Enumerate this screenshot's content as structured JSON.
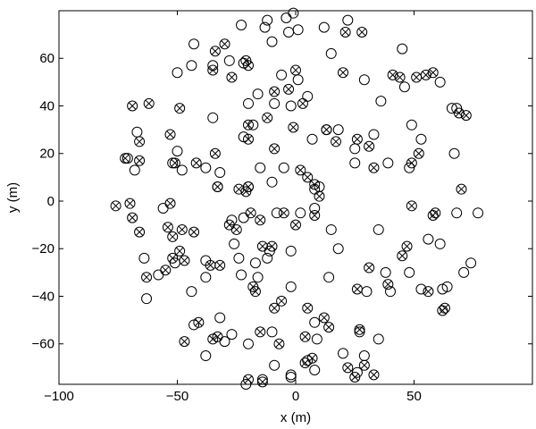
{
  "chart_data": {
    "type": "scatter",
    "title": "",
    "xlabel": "x (m)",
    "ylabel": "y (m)",
    "xlim": [
      -100,
      100
    ],
    "ylim": [
      -77,
      80
    ],
    "xticks": [
      -100,
      -50,
      0,
      50
    ],
    "yticks": [
      -60,
      -40,
      -20,
      0,
      20,
      40,
      60
    ],
    "xtick_labels": [
      "−100",
      "−50",
      "0",
      "50"
    ],
    "ytick_labels": [
      "−60",
      "−40",
      "−20",
      "0",
      "20",
      "40",
      "60"
    ],
    "grid": false,
    "legend": "none",
    "series": [
      {
        "marker": "circle",
        "points": [
          [
            -3,
            71
          ],
          [
            -1,
            79
          ],
          [
            12,
            73
          ],
          [
            -10,
            67
          ],
          [
            22,
            76
          ],
          [
            -23,
            74
          ],
          [
            -13,
            73
          ],
          [
            -12,
            76
          ],
          [
            -4,
            77
          ],
          [
            1,
            72
          ],
          [
            -43,
            66
          ],
          [
            -28,
            59
          ],
          [
            -35,
            57
          ],
          [
            -44,
            57
          ],
          [
            -50,
            54
          ],
          [
            -22,
            58
          ],
          [
            -6,
            53
          ],
          [
            1,
            51
          ],
          [
            15,
            62
          ],
          [
            29,
            51
          ],
          [
            36,
            42
          ],
          [
            46,
            48
          ],
          [
            45,
            64
          ],
          [
            61,
            50
          ],
          [
            -20,
            41
          ],
          [
            -9,
            41
          ],
          [
            -2,
            40
          ],
          [
            5,
            44
          ],
          [
            -35,
            35
          ],
          [
            -18,
            32
          ],
          [
            -16,
            45
          ],
          [
            49,
            32
          ],
          [
            53,
            26
          ],
          [
            33,
            28
          ],
          [
            25,
            22
          ],
          [
            -67,
            29
          ],
          [
            -71,
            18
          ],
          [
            -68,
            13
          ],
          [
            -50,
            21
          ],
          [
            -52,
            16
          ],
          [
            -48,
            13
          ],
          [
            -38,
            14
          ],
          [
            -22,
            27
          ],
          [
            -15,
            14
          ],
          [
            -5,
            14
          ],
          [
            13,
            30
          ],
          [
            18,
            30
          ],
          [
            7,
            26
          ],
          [
            25,
            16
          ],
          [
            39,
            16
          ],
          [
            67,
            20
          ],
          [
            66,
            39
          ],
          [
            68,
            39
          ],
          [
            48,
            14
          ],
          [
            -10,
            8
          ],
          [
            -20,
            6
          ],
          [
            -32,
            12
          ],
          [
            -33,
            6
          ],
          [
            8,
            5
          ],
          [
            10,
            6
          ],
          [
            -56,
            -3
          ],
          [
            -64,
            -24
          ],
          [
            -63,
            -41
          ],
          [
            -58,
            -31
          ],
          [
            -51,
            -26
          ],
          [
            -38,
            -32
          ],
          [
            -44,
            -38
          ],
          [
            -26,
            -18
          ],
          [
            -23,
            -31
          ],
          [
            -17,
            -26
          ],
          [
            -22,
            -7
          ],
          [
            -27,
            -8
          ],
          [
            -24,
            -24
          ],
          [
            -16,
            -32
          ],
          [
            -11,
            -21
          ],
          [
            -12,
            -24
          ],
          [
            -2,
            -21
          ],
          [
            -2,
            -36
          ],
          [
            -8,
            -5
          ],
          [
            8,
            -3
          ],
          [
            14,
            -32
          ],
          [
            18,
            -20
          ],
          [
            15,
            -12
          ],
          [
            35,
            -12
          ],
          [
            30,
            -38
          ],
          [
            40,
            -38
          ],
          [
            38,
            -30
          ],
          [
            48,
            -30
          ],
          [
            56,
            -16
          ],
          [
            61,
            -18
          ],
          [
            53,
            -37
          ],
          [
            62,
            -37
          ],
          [
            68,
            -5
          ],
          [
            77,
            -5
          ],
          [
            74,
            -26
          ],
          [
            71,
            -30
          ],
          [
            64,
            -36
          ],
          [
            2,
            -5
          ],
          [
            -38,
            -25
          ],
          [
            -43,
            -52
          ],
          [
            -38,
            -65
          ],
          [
            -27,
            -56
          ],
          [
            -32,
            -49
          ],
          [
            -30,
            -59
          ],
          [
            -20,
            -60
          ],
          [
            -10,
            -55
          ],
          [
            -9,
            -69
          ],
          [
            -2,
            -74
          ],
          [
            8,
            -51
          ],
          [
            -14,
            -75
          ],
          [
            5,
            -67
          ],
          [
            8,
            -71
          ],
          [
            20,
            -64
          ],
          [
            26,
            -72
          ],
          [
            29,
            -65
          ],
          [
            35,
            -58
          ],
          [
            27,
            -55
          ],
          [
            -21,
            -77
          ],
          [
            9,
            -58
          ],
          [
            -2,
            -73
          ]
        ]
      },
      {
        "marker": "circle-x",
        "points": [
          [
            -76,
            -2
          ],
          [
            -70,
            -1
          ],
          [
            -66,
            -13
          ],
          [
            -69,
            -7
          ],
          [
            -66,
            25
          ],
          [
            -66,
            17
          ],
          [
            -69,
            40
          ],
          [
            -62,
            41
          ],
          [
            -72,
            18
          ],
          [
            -53,
            -1
          ],
          [
            -54,
            -11
          ],
          [
            -52,
            -15
          ],
          [
            -48,
            -12
          ],
          [
            -52,
            -24
          ],
          [
            -55,
            -29
          ],
          [
            -49,
            -21
          ],
          [
            -43,
            -13
          ],
          [
            -63,
            -32
          ],
          [
            -47,
            -59
          ],
          [
            -41,
            -51
          ],
          [
            -35,
            -58
          ],
          [
            -33,
            -57
          ],
          [
            -32,
            -27
          ],
          [
            -28,
            -10
          ],
          [
            -19,
            -5
          ],
          [
            -15,
            -8
          ],
          [
            -10,
            -19
          ],
          [
            -14,
            -19
          ],
          [
            -18,
            -36
          ],
          [
            -17,
            -38
          ],
          [
            -6,
            -42
          ],
          [
            -7,
            -60
          ],
          [
            -15,
            -55
          ],
          [
            -14,
            -76
          ],
          [
            -20,
            -75
          ],
          [
            -9,
            -45
          ],
          [
            5,
            -45
          ],
          [
            4,
            -57
          ],
          [
            4,
            -68
          ],
          [
            7,
            -66
          ],
          [
            14,
            -53
          ],
          [
            22,
            -70
          ],
          [
            25,
            -74
          ],
          [
            27,
            -54
          ],
          [
            33,
            -73
          ],
          [
            29,
            -69
          ],
          [
            26,
            -37
          ],
          [
            31,
            -28
          ],
          [
            39,
            -35
          ],
          [
            45,
            -23
          ],
          [
            47,
            -19
          ],
          [
            49,
            -2
          ],
          [
            58,
            -6
          ],
          [
            63,
            -45
          ],
          [
            62,
            -46
          ],
          [
            56,
            -38
          ],
          [
            70,
            5
          ],
          [
            51,
            52
          ],
          [
            55,
            53
          ],
          [
            58,
            54
          ],
          [
            69,
            37
          ],
          [
            72,
            36
          ],
          [
            52,
            20
          ],
          [
            44,
            52
          ],
          [
            41,
            53
          ],
          [
            28,
            71
          ],
          [
            20,
            54
          ],
          [
            21,
            71
          ],
          [
            0,
            55
          ],
          [
            -3,
            47
          ],
          [
            -9,
            46
          ],
          [
            -12,
            35
          ],
          [
            -20,
            57
          ],
          [
            -21,
            59
          ],
          [
            -27,
            52
          ],
          [
            -35,
            55
          ],
          [
            -30,
            66
          ],
          [
            -34,
            63
          ],
          [
            -49,
            39
          ],
          [
            -53,
            28
          ],
          [
            -51,
            16
          ],
          [
            -42,
            16
          ],
          [
            -34,
            20
          ],
          [
            -33,
            6
          ],
          [
            -21,
            4
          ],
          [
            -20,
            6
          ],
          [
            -20,
            32
          ],
          [
            -9,
            22
          ],
          [
            2,
            13
          ],
          [
            5,
            10
          ],
          [
            8,
            7
          ],
          [
            10,
            2
          ],
          [
            13,
            30
          ],
          [
            17,
            25
          ],
          [
            26,
            26
          ],
          [
            31,
            23
          ],
          [
            33,
            14
          ],
          [
            49,
            16
          ],
          [
            59,
            -5
          ],
          [
            8,
            -6
          ],
          [
            0,
            -10
          ],
          [
            -5,
            -5
          ],
          [
            12,
            -49
          ],
          [
            -47,
            -25
          ],
          [
            -36,
            -27
          ],
          [
            -25,
            -12
          ],
          [
            -24,
            5
          ],
          [
            -20,
            26
          ],
          [
            -1,
            31
          ],
          [
            3,
            41
          ]
        ]
      }
    ]
  }
}
